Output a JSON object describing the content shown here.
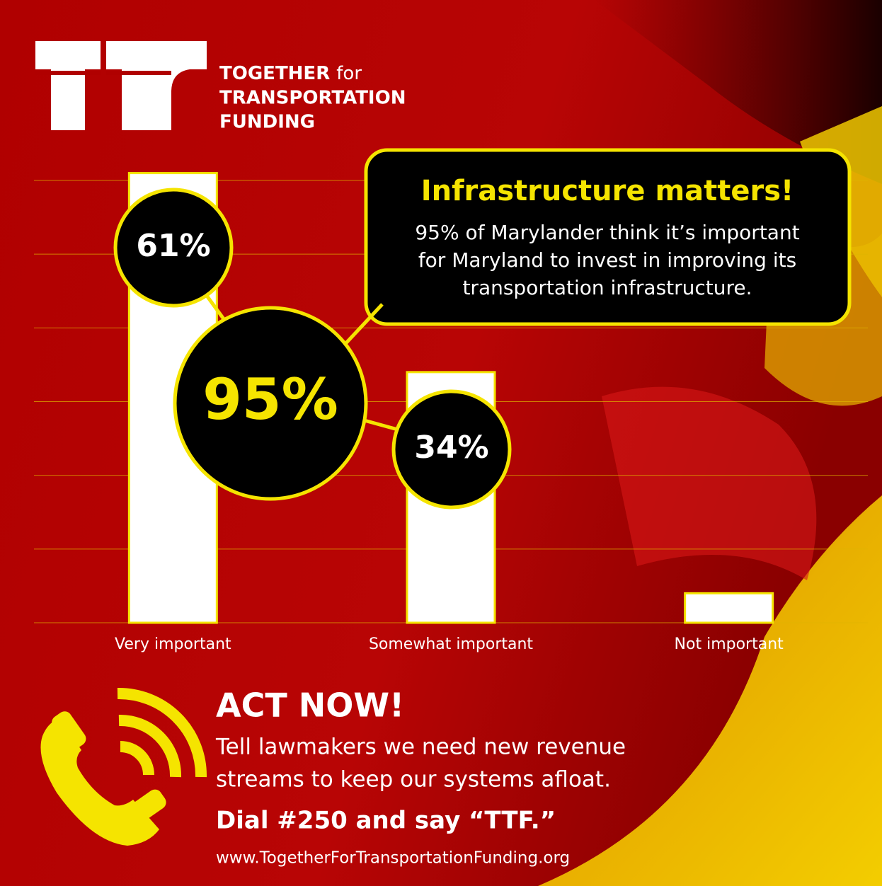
{
  "header": {
    "line1_bold": "TOGETHER",
    "line1_rest": "for",
    "line2": "TRANSPORTATION",
    "line3": "FUNDING"
  },
  "chart_data": {
    "type": "bar",
    "categories": [
      "Very important",
      "Somewhat important",
      "Not important"
    ],
    "values": [
      61,
      34,
      4
    ],
    "value_labels": [
      "61%",
      "34%",
      null
    ],
    "color": "#ffffff",
    "ylim": [
      0,
      60
    ],
    "yticks": [
      0,
      10,
      20,
      30,
      40,
      50,
      60
    ],
    "grid": true,
    "annotation": "95%"
  },
  "callout": {
    "title": "Infrastructure matters!",
    "lines": [
      "95% of Marylander think it’s important",
      "for Maryland to invest in improving its",
      "transportation infrastructure."
    ]
  },
  "footer": {
    "title": "ACT NOW!",
    "lines": [
      "Tell lawmakers we need new revenue",
      "streams to keep our systems afloat."
    ],
    "cta": "Dial #250 and say “TTF.”",
    "url": "www.TogetherForTransportationFunding.org"
  }
}
